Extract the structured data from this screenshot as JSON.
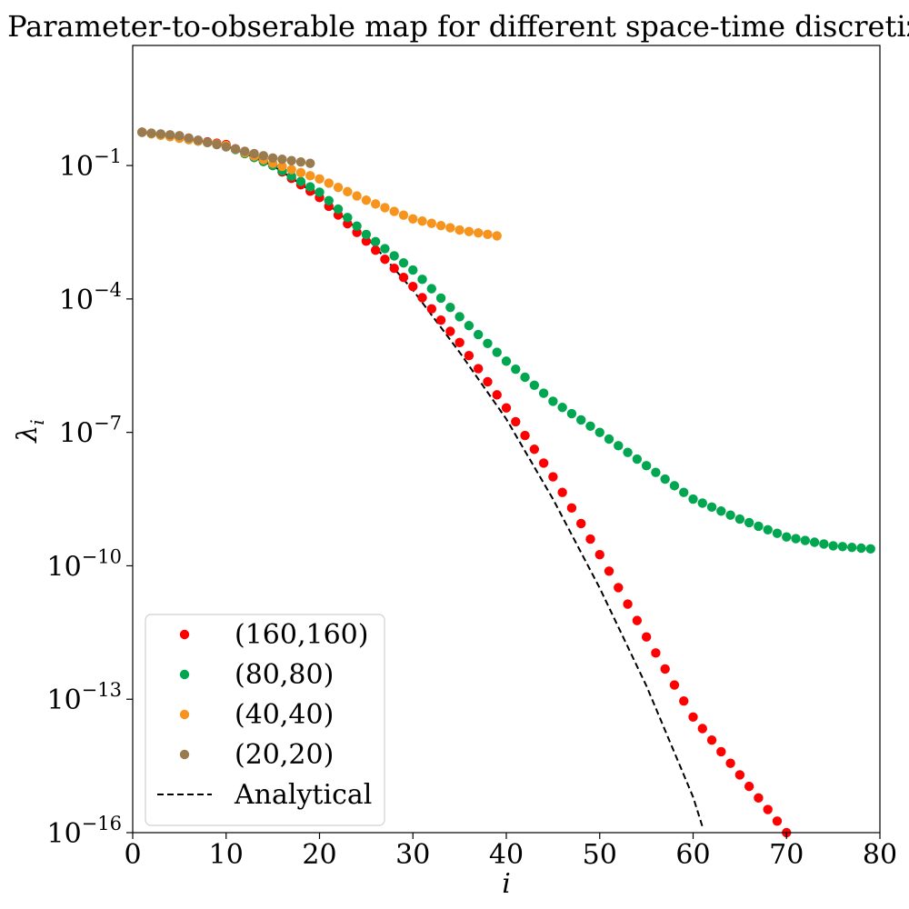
{
  "chart_data": {
    "type": "scatter",
    "title": "Parameter-to-obserable map for different space-time discretizations",
    "xlabel": "i",
    "ylabel": "λ",
    "ylabel_subscript": "i",
    "xscale": "linear",
    "yscale": "log",
    "xlim": [
      0,
      80
    ],
    "ylim_log10": [
      -16,
      1.7
    ],
    "x_ticks": [
      "0",
      "10",
      "20",
      "30",
      "40",
      "50",
      "60",
      "70",
      "80"
    ],
    "y_ticks": [
      {
        "base": "10",
        "exp": "−1"
      },
      {
        "base": "10",
        "exp": "−4"
      },
      {
        "base": "10",
        "exp": "−7"
      },
      {
        "base": "10",
        "exp": "−10"
      },
      {
        "base": "10",
        "exp": "−13"
      },
      {
        "base": "10",
        "exp": "−16"
      }
    ],
    "legend_position": "lower-left",
    "series": [
      {
        "name": "(160,160)",
        "marker": "dot",
        "color": "#ff0000",
        "n": 70,
        "log10_points": [
          [
            1,
            -0.25
          ],
          [
            10,
            -0.53
          ],
          [
            15,
            -1.0
          ],
          [
            20,
            -1.72
          ],
          [
            25,
            -2.7
          ],
          [
            30,
            -3.72
          ],
          [
            35,
            -4.98
          ],
          [
            40,
            -6.45
          ],
          [
            45,
            -8.0
          ],
          [
            50,
            -9.75
          ],
          [
            55,
            -11.6
          ],
          [
            60,
            -13.4
          ],
          [
            65,
            -14.7
          ],
          [
            70,
            -16.0
          ]
        ]
      },
      {
        "name": "(80,80)",
        "marker": "dot",
        "color": "#00a650",
        "n": 79,
        "log10_points": [
          [
            1,
            -0.25
          ],
          [
            10,
            -0.55
          ],
          [
            15,
            -1.0
          ],
          [
            20,
            -1.6
          ],
          [
            25,
            -2.55
          ],
          [
            30,
            -3.35
          ],
          [
            35,
            -4.4
          ],
          [
            40,
            -5.4
          ],
          [
            45,
            -6.3
          ],
          [
            50,
            -7.0
          ],
          [
            55,
            -7.75
          ],
          [
            60,
            -8.5
          ],
          [
            65,
            -8.95
          ],
          [
            70,
            -9.35
          ],
          [
            75,
            -9.55
          ],
          [
            79,
            -9.62
          ]
        ]
      },
      {
        "name": "(40,40)",
        "marker": "dot",
        "color": "#f7941d",
        "n": 39,
        "log10_points": [
          [
            1,
            -0.25
          ],
          [
            10,
            -0.55
          ],
          [
            15,
            -0.95
          ],
          [
            20,
            -1.3
          ],
          [
            25,
            -1.78
          ],
          [
            30,
            -2.2
          ],
          [
            35,
            -2.45
          ],
          [
            39,
            -2.58
          ]
        ]
      },
      {
        "name": "(20,20)",
        "marker": "dot",
        "color": "#9a7b4f",
        "n": 19,
        "log10_points": [
          [
            1,
            -0.25
          ],
          [
            5,
            -0.33
          ],
          [
            10,
            -0.58
          ],
          [
            15,
            -0.83
          ],
          [
            19,
            -0.95
          ]
        ]
      }
    ],
    "lines": [
      {
        "name": "Analytical",
        "style": "dashed",
        "color": "#000000",
        "log10_points": [
          [
            1,
            -0.25
          ],
          [
            10,
            -0.55
          ],
          [
            15,
            -1.0
          ],
          [
            20,
            -1.7
          ],
          [
            25,
            -2.6
          ],
          [
            30,
            -3.8
          ],
          [
            35,
            -5.2
          ],
          [
            40,
            -6.7
          ],
          [
            45,
            -8.5
          ],
          [
            50,
            -10.5
          ],
          [
            55,
            -12.7
          ],
          [
            60,
            -15.2
          ],
          [
            61.2,
            -16.0
          ]
        ]
      }
    ]
  }
}
